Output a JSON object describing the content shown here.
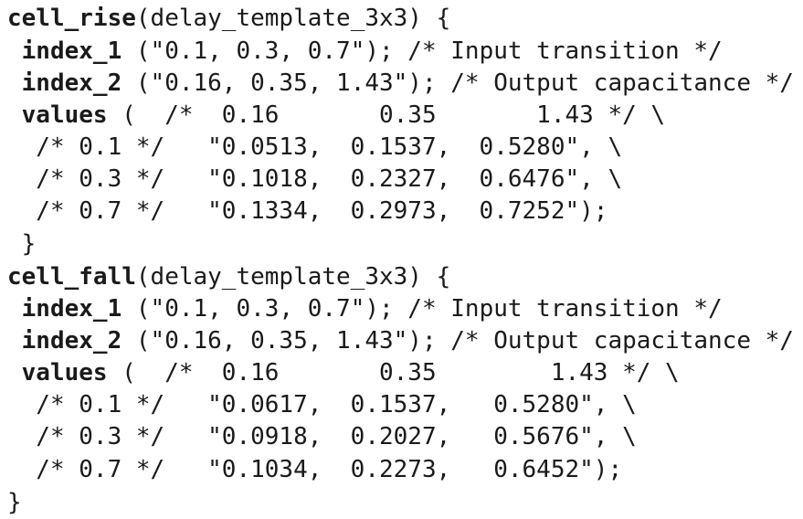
{
  "blocks": [
    {
      "header_kw": "cell_rise",
      "header_rest": "(delay_template_3x3) {",
      "index_1_kw": "index_1",
      "index_1_rest": " (\"0.1, 0.3, 0.7\"); /* Input transition */",
      "index_2_kw": "index_2",
      "index_2_rest": " (\"0.16, 0.35, 1.43\"); /* Output capacitance */",
      "values_kw": "values",
      "values_rest": " (  /*  0.16       0.35       1.43 */ \\",
      "rows": [
        "  /* 0.1 */   \"0.0513,  0.1537,  0.5280\", \\",
        "  /* 0.3 */   \"0.1018,  0.2327,  0.6476\", \\",
        "  /* 0.7 */   \"0.1334,  0.2973,  0.7252\");"
      ],
      "close": " }"
    },
    {
      "header_kw": "cell_fall",
      "header_rest": "(delay_template_3x3) {",
      "index_1_kw": "index_1",
      "index_1_rest": " (\"0.1, 0.3, 0.7\"); /* Input transition */",
      "index_2_kw": "index_2",
      "index_2_rest": " (\"0.16, 0.35, 1.43\"); /* Output capacitance */",
      "values_kw": "values",
      "values_rest": " (  /*  0.16       0.35        1.43 */ \\",
      "rows": [
        "  /* 0.1 */   \"0.0617,  0.1537,   0.5280\", \\",
        "  /* 0.3 */   \"0.0918,  0.2027,   0.5676\", \\",
        "  /* 0.7 */   \"0.1034,  0.2273,   0.6452\");"
      ],
      "close": "}"
    }
  ]
}
